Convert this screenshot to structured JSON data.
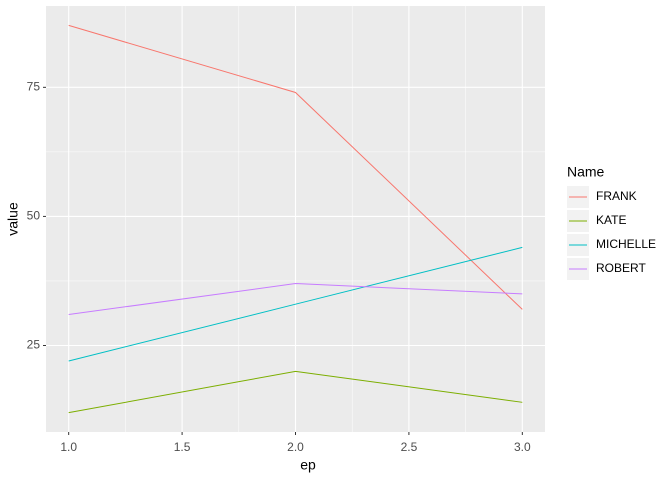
{
  "chart_data": {
    "type": "line",
    "x_label": "ep",
    "y_label": "value",
    "legend_title": "Name",
    "x": [
      1,
      2,
      3
    ],
    "series": [
      {
        "name": "FRANK",
        "color": "#F8766D",
        "values": [
          87,
          74,
          32
        ]
      },
      {
        "name": "KATE",
        "color": "#7CAE00",
        "values": [
          12,
          20,
          14
        ]
      },
      {
        "name": "MICHELLE",
        "color": "#00BFC4",
        "values": [
          22,
          33,
          44
        ]
      },
      {
        "name": "ROBERT",
        "color": "#C77CFF",
        "values": [
          31,
          37,
          35
        ]
      }
    ],
    "xlim": [
      0.9,
      3.1
    ],
    "xticks": [
      {
        "value": 1,
        "label": "1.0"
      },
      1.5,
      {
        "value": 2,
        "label": "2.0"
      },
      2.5,
      {
        "value": 3,
        "label": "3.0"
      }
    ],
    "ylim": [
      8.25,
      90.75
    ],
    "yticks": [
      25,
      50,
      75
    ],
    "grid": true,
    "legend": "right"
  }
}
